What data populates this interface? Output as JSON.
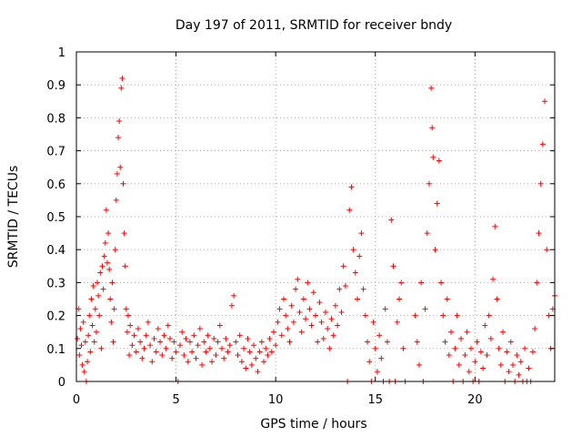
{
  "chart_data": {
    "type": "scatter",
    "title": "Day 197 of 2011, SRMTID for receiver bndy",
    "xlabel": "GPS time / hours",
    "ylabel": "SRMTID / TECUs",
    "xlim": [
      0,
      24
    ],
    "ylim": [
      0,
      1
    ],
    "xticks": [
      0,
      5,
      10,
      15,
      20
    ],
    "yticks": [
      0,
      0.1,
      0.2,
      0.3,
      0.4,
      0.5,
      0.6,
      0.7,
      0.8,
      0.9,
      1
    ],
    "ytick_labels": [
      "0",
      "0.1",
      "0.2",
      "0.3",
      "0.4",
      "0.5",
      "0.6",
      "0.7",
      "0.8",
      "0.9",
      "1"
    ],
    "grid": true,
    "marker": "+",
    "series": [
      {
        "name": "SRMTID",
        "color": "#ff0000",
        "points": [
          [
            0.05,
            0.13
          ],
          [
            0.1,
            0.22
          ],
          [
            0.15,
            0.08
          ],
          [
            0.2,
            0.16
          ],
          [
            0.25,
            0.11
          ],
          [
            0.3,
            0.05
          ],
          [
            0.35,
            0.18
          ],
          [
            0.4,
            0.03
          ],
          [
            0.45,
            0.12
          ],
          [
            0.5,
            0.0
          ],
          [
            0.55,
            0.06
          ],
          [
            0.6,
            0.14
          ],
          [
            0.65,
            0.2
          ],
          [
            0.7,
            0.09
          ],
          [
            0.75,
            0.25
          ],
          [
            0.8,
            0.17
          ],
          [
            0.85,
            0.29
          ],
          [
            0.9,
            0.12
          ],
          [
            0.95,
            0.22
          ],
          [
            1.0,
            0.15
          ],
          [
            1.05,
            0.3
          ],
          [
            1.1,
            0.26
          ],
          [
            1.15,
            0.2
          ],
          [
            1.2,
            0.33
          ],
          [
            1.25,
            0.1
          ],
          [
            1.3,
            0.35
          ],
          [
            1.35,
            0.28
          ],
          [
            1.4,
            0.38
          ],
          [
            1.45,
            0.42
          ],
          [
            1.5,
            0.52
          ],
          [
            1.55,
            0.36
          ],
          [
            1.6,
            0.45
          ],
          [
            1.65,
            0.34
          ],
          [
            1.7,
            0.25
          ],
          [
            1.75,
            0.18
          ],
          [
            1.8,
            0.3
          ],
          [
            1.85,
            0.12
          ],
          [
            1.9,
            0.22
          ],
          [
            1.95,
            0.4
          ],
          [
            2.0,
            0.55
          ],
          [
            2.05,
            0.63
          ],
          [
            2.1,
            0.74
          ],
          [
            2.15,
            0.79
          ],
          [
            2.2,
            0.65
          ],
          [
            2.25,
            0.89
          ],
          [
            2.3,
            0.92
          ],
          [
            2.35,
            0.6
          ],
          [
            2.4,
            0.45
          ],
          [
            2.45,
            0.35
          ],
          [
            2.5,
            0.22
          ],
          [
            2.55,
            0.15
          ],
          [
            2.6,
            0.2
          ],
          [
            2.65,
            0.08
          ],
          [
            2.7,
            0.17
          ],
          [
            2.8,
            0.11
          ],
          [
            2.9,
            0.14
          ],
          [
            3.0,
            0.09
          ],
          [
            3.1,
            0.16
          ],
          [
            3.2,
            0.12
          ],
          [
            3.3,
            0.07
          ],
          [
            3.4,
            0.1
          ],
          [
            3.5,
            0.14
          ],
          [
            3.6,
            0.18
          ],
          [
            3.7,
            0.11
          ],
          [
            3.8,
            0.06
          ],
          [
            3.9,
            0.13
          ],
          [
            4.0,
            0.09
          ],
          [
            4.1,
            0.16
          ],
          [
            4.2,
            0.12
          ],
          [
            4.3,
            0.08
          ],
          [
            4.4,
            0.14
          ],
          [
            4.5,
            0.1
          ],
          [
            4.6,
            0.17
          ],
          [
            4.7,
            0.13
          ],
          [
            4.8,
            0.07
          ],
          [
            4.9,
            0.12
          ],
          [
            5.0,
            0.09
          ],
          [
            5.1,
            0.0
          ],
          [
            5.2,
            0.11
          ],
          [
            5.3,
            0.15
          ],
          [
            5.4,
            0.08
          ],
          [
            5.5,
            0.13
          ],
          [
            5.6,
            0.06
          ],
          [
            5.7,
            0.12
          ],
          [
            5.8,
            0.09
          ],
          [
            5.9,
            0.14
          ],
          [
            6.0,
            0.07
          ],
          [
            6.1,
            0.11
          ],
          [
            6.2,
            0.16
          ],
          [
            6.3,
            0.05
          ],
          [
            6.4,
            0.12
          ],
          [
            6.5,
            0.09
          ],
          [
            6.6,
            0.14
          ],
          [
            6.7,
            0.1
          ],
          [
            6.8,
            0.06
          ],
          [
            6.9,
            0.13
          ],
          [
            7.0,
            0.08
          ],
          [
            7.1,
            0.12
          ],
          [
            7.2,
            0.17
          ],
          [
            7.3,
            0.1
          ],
          [
            7.4,
            0.07
          ],
          [
            7.5,
            0.13
          ],
          [
            7.6,
            0.09
          ],
          [
            7.7,
            0.11
          ],
          [
            7.8,
            0.23
          ],
          [
            7.9,
            0.26
          ],
          [
            8.0,
            0.12
          ],
          [
            8.1,
            0.08
          ],
          [
            8.2,
            0.14
          ],
          [
            8.3,
            0.06
          ],
          [
            8.4,
            0.1
          ],
          [
            8.5,
            0.04
          ],
          [
            8.6,
            0.13
          ],
          [
            8.7,
            0.09
          ],
          [
            8.8,
            0.05
          ],
          [
            8.9,
            0.11
          ],
          [
            9.0,
            0.07
          ],
          [
            9.1,
            0.03
          ],
          [
            9.2,
            0.09
          ],
          [
            9.3,
            0.12
          ],
          [
            9.4,
            0.06
          ],
          [
            9.5,
            0.1
          ],
          [
            9.6,
            0.08
          ],
          [
            9.7,
            0.13
          ],
          [
            9.8,
            0.09
          ],
          [
            9.9,
            0.15
          ],
          [
            10.0,
            0.11
          ],
          [
            10.1,
            0.18
          ],
          [
            10.2,
            0.22
          ],
          [
            10.3,
            0.14
          ],
          [
            10.4,
            0.25
          ],
          [
            10.5,
            0.2
          ],
          [
            10.6,
            0.16
          ],
          [
            10.7,
            0.12
          ],
          [
            10.8,
            0.23
          ],
          [
            10.9,
            0.18
          ],
          [
            11.0,
            0.28
          ],
          [
            11.1,
            0.31
          ],
          [
            11.2,
            0.21
          ],
          [
            11.3,
            0.15
          ],
          [
            11.4,
            0.25
          ],
          [
            11.5,
            0.19
          ],
          [
            11.6,
            0.3
          ],
          [
            11.7,
            0.22
          ],
          [
            11.8,
            0.17
          ],
          [
            11.9,
            0.27
          ],
          [
            12.0,
            0.2
          ],
          [
            12.1,
            0.12
          ],
          [
            12.2,
            0.24
          ],
          [
            12.3,
            0.18
          ],
          [
            12.4,
            0.13
          ],
          [
            12.5,
            0.21
          ],
          [
            12.6,
            0.16
          ],
          [
            12.7,
            0.1
          ],
          [
            12.8,
            0.19
          ],
          [
            12.9,
            0.14
          ],
          [
            13.0,
            0.23
          ],
          [
            13.1,
            0.17
          ],
          [
            13.2,
            0.28
          ],
          [
            13.3,
            0.21
          ],
          [
            13.4,
            0.35
          ],
          [
            13.5,
            0.29
          ],
          [
            13.6,
            0.0
          ],
          [
            13.7,
            0.52
          ],
          [
            13.8,
            0.59
          ],
          [
            13.9,
            0.4
          ],
          [
            14.0,
            0.33
          ],
          [
            14.1,
            0.25
          ],
          [
            14.2,
            0.38
          ],
          [
            14.3,
            0.45
          ],
          [
            14.4,
            0.28
          ],
          [
            14.5,
            0.2
          ],
          [
            14.6,
            0.12
          ],
          [
            14.7,
            0.06
          ],
          [
            14.8,
            0.0
          ],
          [
            14.9,
            0.18
          ],
          [
            15.0,
            0.1
          ],
          [
            15.1,
            0.03
          ],
          [
            15.2,
            0.14
          ],
          [
            15.3,
            0.07
          ],
          [
            15.4,
            0.0
          ],
          [
            15.5,
            0.22
          ],
          [
            15.6,
            0.12
          ],
          [
            15.7,
            0.0
          ],
          [
            15.8,
            0.49
          ],
          [
            15.9,
            0.35
          ],
          [
            16.0,
            0.0
          ],
          [
            16.1,
            0.18
          ],
          [
            16.2,
            0.25
          ],
          [
            16.3,
            0.3
          ],
          [
            16.4,
            0.1
          ],
          [
            16.5,
            0.0
          ],
          [
            17.0,
            0.2
          ],
          [
            17.1,
            0.12
          ],
          [
            17.2,
            0.05
          ],
          [
            17.3,
            0.3
          ],
          [
            17.4,
            0.0
          ],
          [
            17.5,
            0.22
          ],
          [
            17.6,
            0.45
          ],
          [
            17.7,
            0.6
          ],
          [
            17.8,
            0.89
          ],
          [
            17.85,
            0.77
          ],
          [
            17.9,
            0.68
          ],
          [
            18.0,
            0.4
          ],
          [
            18.1,
            0.54
          ],
          [
            18.2,
            0.67
          ],
          [
            18.3,
            0.3
          ],
          [
            18.4,
            0.2
          ],
          [
            18.5,
            0.12
          ],
          [
            18.6,
            0.25
          ],
          [
            18.7,
            0.08
          ],
          [
            18.8,
            0.15
          ],
          [
            18.9,
            0.0
          ],
          [
            19.0,
            0.1
          ],
          [
            19.1,
            0.2
          ],
          [
            19.2,
            0.05
          ],
          [
            19.3,
            0.13
          ],
          [
            19.4,
            0.0
          ],
          [
            19.5,
            0.08
          ],
          [
            19.6,
            0.15
          ],
          [
            19.7,
            0.03
          ],
          [
            19.8,
            0.1
          ],
          [
            19.9,
            0.0
          ],
          [
            20.0,
            0.06
          ],
          [
            20.1,
            0.12
          ],
          [
            20.2,
            0.0
          ],
          [
            20.3,
            0.09
          ],
          [
            20.4,
            0.04
          ],
          [
            20.5,
            0.17
          ],
          [
            20.6,
            0.08
          ],
          [
            20.7,
            0.2
          ],
          [
            20.8,
            0.13
          ],
          [
            20.9,
            0.31
          ],
          [
            21.0,
            0.47
          ],
          [
            21.1,
            0.25
          ],
          [
            21.2,
            0.1
          ],
          [
            21.3,
            0.05
          ],
          [
            21.4,
            0.15
          ],
          [
            21.5,
            0.0
          ],
          [
            21.6,
            0.09
          ],
          [
            21.7,
            0.03
          ],
          [
            21.8,
            0.12
          ],
          [
            21.9,
            0.05
          ],
          [
            22.0,
            0.0
          ],
          [
            22.1,
            0.08
          ],
          [
            22.2,
            0.02
          ],
          [
            22.3,
            0.06
          ],
          [
            22.4,
            0.0
          ],
          [
            22.5,
            0.1
          ],
          [
            22.6,
            0.0
          ],
          [
            22.7,
            0.04
          ],
          [
            22.8,
            0.0
          ],
          [
            22.9,
            0.09
          ],
          [
            23.0,
            0.16
          ],
          [
            23.1,
            0.3
          ],
          [
            23.2,
            0.45
          ],
          [
            23.3,
            0.6
          ],
          [
            23.4,
            0.72
          ],
          [
            23.5,
            0.85
          ],
          [
            23.6,
            0.4
          ],
          [
            23.7,
            0.2
          ],
          [
            23.8,
            0.1
          ],
          [
            23.9,
            0.22
          ],
          [
            24.0,
            0.26
          ]
        ]
      }
    ]
  }
}
